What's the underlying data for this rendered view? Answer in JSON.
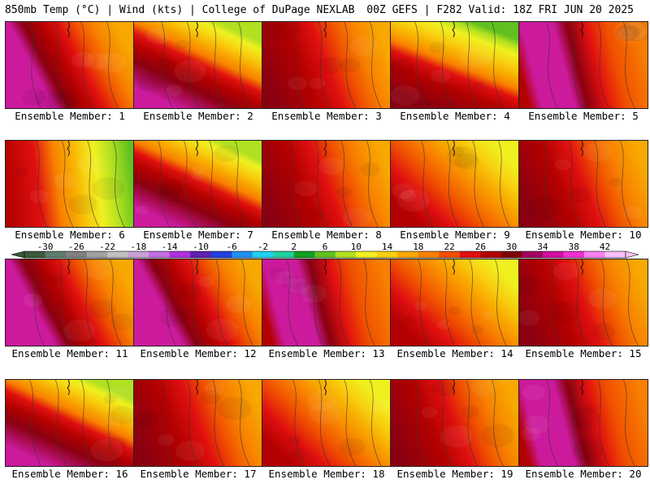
{
  "header": {
    "left": "850mb Temp (°C) | Wind (kts) | College of DuPage NEXLAB",
    "right": "00Z GEFS | F282 Valid: 18Z FRI JUN 20 2025"
  },
  "caption_prefix": "Ensemble Member: ",
  "members": [
    {
      "label": "Ensemble Member: 1",
      "style": "hot-west"
    },
    {
      "label": "Ensemble Member: 2",
      "style": "hot-west-cool-north"
    },
    {
      "label": "Ensemble Member: 3",
      "style": "warm-central"
    },
    {
      "label": "Ensemble Member: 4",
      "style": "cool-north"
    },
    {
      "label": "Ensemble Member: 5",
      "style": "hot-center"
    },
    {
      "label": "Ensemble Member: 6",
      "style": "cool-east"
    },
    {
      "label": "Ensemble Member: 7",
      "style": "hot-west-cool-north"
    },
    {
      "label": "Ensemble Member: 8",
      "style": "warm-central"
    },
    {
      "label": "Ensemble Member: 9",
      "style": "warm-mixed"
    },
    {
      "label": "Ensemble Member: 10",
      "style": "warm-central"
    },
    {
      "label": "Ensemble Member: 11",
      "style": "hot-west"
    },
    {
      "label": "Ensemble Member: 12",
      "style": "hot-west"
    },
    {
      "label": "Ensemble Member: 13",
      "style": "hot-center"
    },
    {
      "label": "Ensemble Member: 14",
      "style": "warm-mixed"
    },
    {
      "label": "Ensemble Member: 15",
      "style": "warm-central"
    },
    {
      "label": "Ensemble Member: 16",
      "style": "hot-west-cool-north"
    },
    {
      "label": "Ensemble Member: 17",
      "style": "warm-central"
    },
    {
      "label": "Ensemble Member: 18",
      "style": "warm-mixed"
    },
    {
      "label": "Ensemble Member: 19",
      "style": "warm-central"
    },
    {
      "label": "Ensemble Member: 20",
      "style": "hot-center"
    }
  ],
  "colorbar": {
    "tick_labels": [
      "-30",
      "-26",
      "-22",
      "-18",
      "-14",
      "-10",
      "-6",
      "-2",
      "2",
      "6",
      "10",
      "14",
      "18",
      "22",
      "26",
      "30",
      "34",
      "38",
      "42"
    ],
    "colors": [
      "#3a5a3a",
      "#5d7b6d",
      "#808080",
      "#a0a0a0",
      "#c0c0c0",
      "#c8a0d8",
      "#c070e0",
      "#b030e0",
      "#6020b0",
      "#2040e0",
      "#2090f0",
      "#20d0f0",
      "#20d0a0",
      "#10a020",
      "#60c020",
      "#b0e020",
      "#f0f020",
      "#f8d010",
      "#f8a800",
      "#f88000",
      "#f05000",
      "#e01010",
      "#b00000",
      "#800000",
      "#a00060",
      "#d010a0",
      "#f030d0",
      "#f880f0",
      "#f8c0f8"
    ]
  },
  "palette": {
    "magenta": "#cc1a9c",
    "pink": "#f02ad0",
    "maroon": "#8a0010",
    "darkred": "#b30000",
    "red": "#e01010",
    "orangered": "#f05000",
    "orange": "#f88000",
    "amber": "#f8a800",
    "gold": "#f8d010",
    "yellow": "#f0f020",
    "lime": "#b0e020",
    "green": "#60c020"
  }
}
